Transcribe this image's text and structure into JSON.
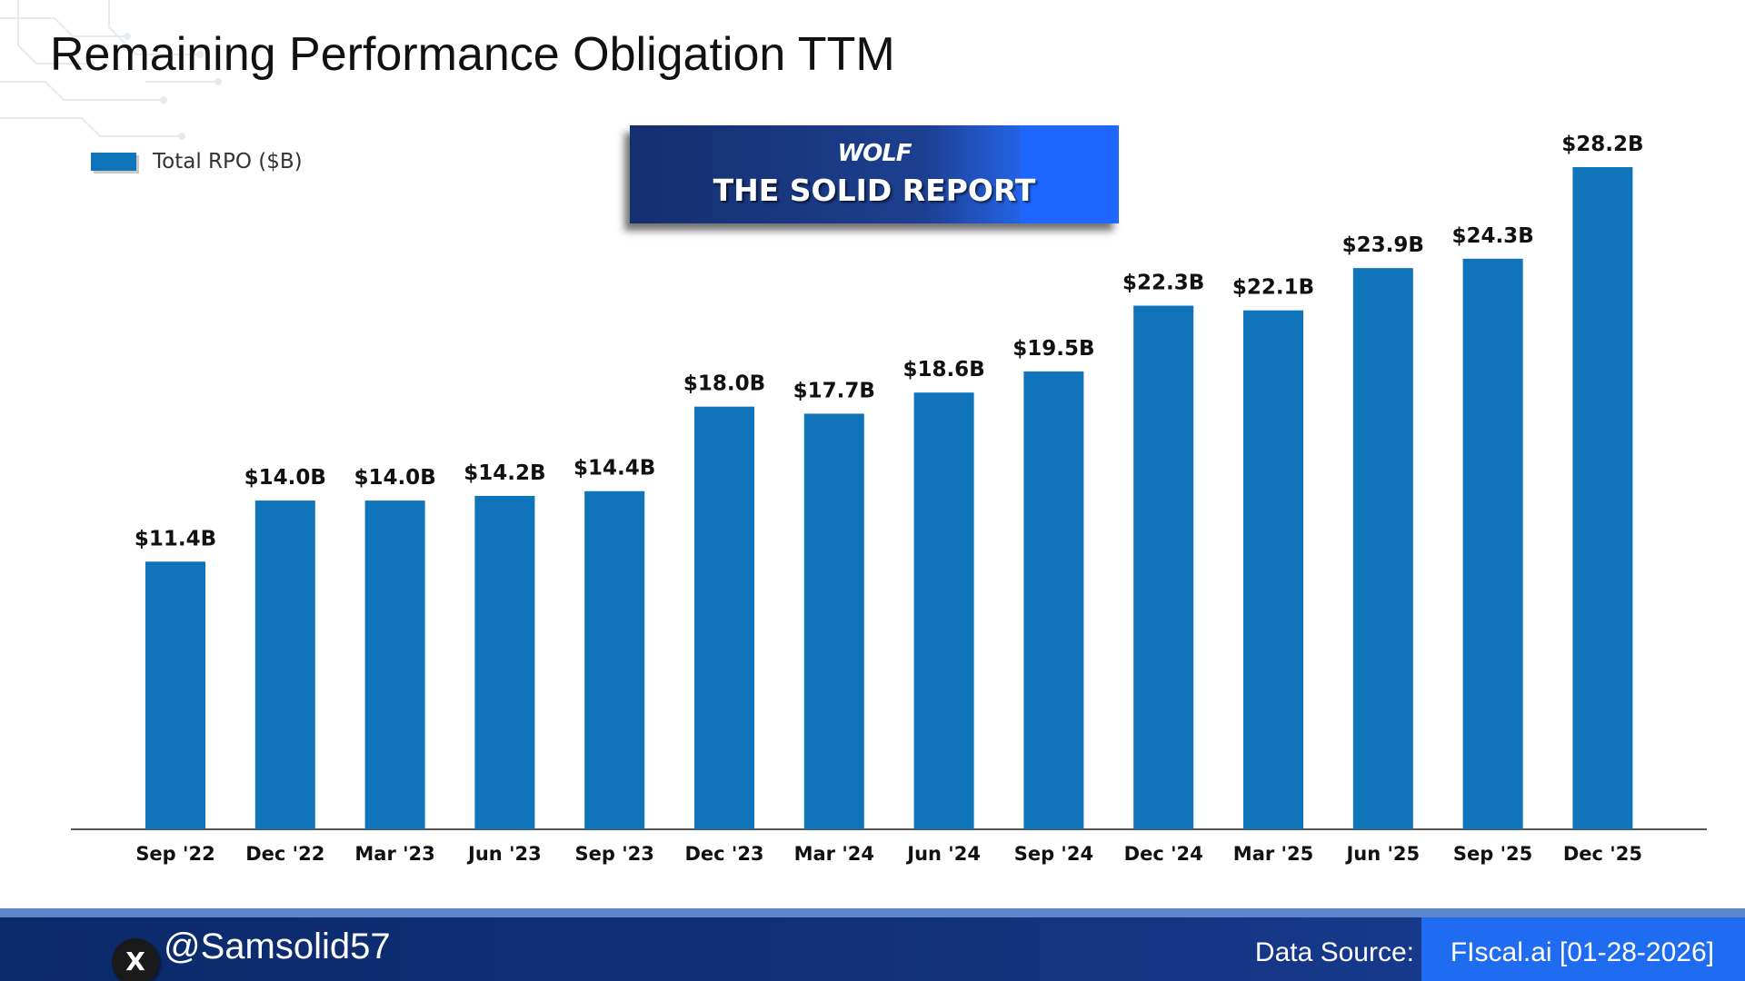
{
  "header": {
    "title": "Remaining Performance Obligation TTM"
  },
  "banner": {
    "logo": "WOLF",
    "title": "THE SOLID REPORT"
  },
  "footer": {
    "handle": "@Samsolid57",
    "x_icon": "X",
    "source_label": "Data Source:",
    "source_value": "FIscal.ai [01-28-2026]"
  },
  "colors": {
    "bar": "#0F74B9",
    "axis": "#555555",
    "label": "#111111"
  },
  "chart_data": {
    "type": "bar",
    "title": "Remaining Performance Obligation TTM",
    "legend": "Total RPO ($B)",
    "legend_position": "top-left",
    "categories": [
      "Sep '22",
      "Dec '22",
      "Mar '23",
      "Jun '23",
      "Sep '23",
      "Dec '23",
      "Mar '24",
      "Jun '24",
      "Sep '24",
      "Dec '24",
      "Mar '25",
      "Jun '25",
      "Sep '25",
      "Dec '25"
    ],
    "values": [
      11.4,
      14.0,
      14.0,
      14.2,
      14.4,
      18.0,
      17.7,
      18.6,
      19.5,
      22.3,
      22.1,
      23.9,
      24.3,
      28.2
    ],
    "labels": [
      "$11.4B",
      "$14.0B",
      "$14.0B",
      "$14.2B",
      "$14.4B",
      "$18.0B",
      "$17.7B",
      "$18.6B",
      "$19.5B",
      "$22.3B",
      "$22.1B",
      "$23.9B",
      "$24.3B",
      "$28.2B"
    ],
    "xlabel": "",
    "ylabel": "",
    "ylim": [
      0,
      30
    ],
    "grid": false
  }
}
